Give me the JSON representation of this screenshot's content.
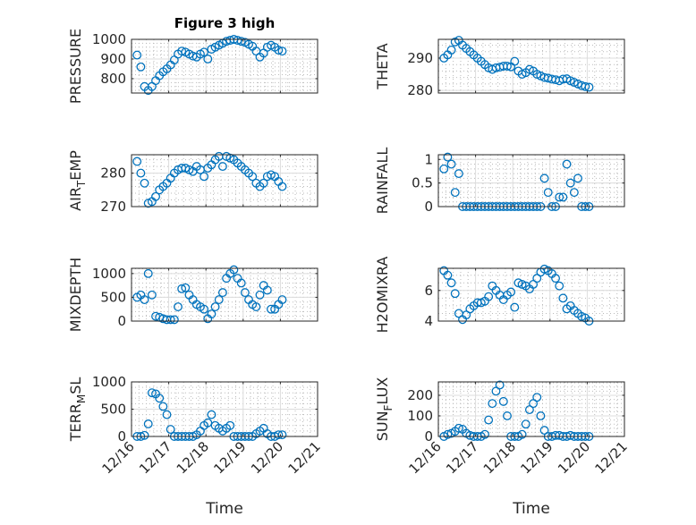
{
  "figure_title": "Figure 3 high",
  "xlabel": "Time",
  "chart_data": {
    "type": "scatter",
    "title": "Figure 3 high",
    "xlabel": "Time",
    "x_units": "days since 12/16",
    "xlim": [
      0,
      5
    ],
    "xtick_labels": [
      "12/16",
      "12/17",
      "12/18",
      "12/19",
      "12/20",
      "12/21"
    ],
    "grid": "on (major solid, minor dotted)",
    "marker": "circle",
    "color": "#0072BD",
    "t": [
      0.15,
      0.25,
      0.35,
      0.45,
      0.55,
      0.65,
      0.75,
      0.85,
      0.95,
      1.05,
      1.15,
      1.25,
      1.35,
      1.45,
      1.55,
      1.65,
      1.75,
      1.85,
      1.95,
      2.05,
      2.15,
      2.25,
      2.35,
      2.45,
      2.55,
      2.65,
      2.75,
      2.85,
      2.95,
      3.05,
      3.15,
      3.25,
      3.35,
      3.45,
      3.55,
      3.65,
      3.75,
      3.85,
      3.95,
      4.05
    ],
    "subplots": [
      {
        "ylabel": "PRESSURE",
        "ylim": [
          727,
          1000
        ],
        "yticks": [
          800,
          900,
          1000
        ],
        "values": [
          920,
          860,
          760,
          740,
          760,
          790,
          815,
          835,
          850,
          870,
          895,
          925,
          940,
          935,
          925,
          915,
          910,
          925,
          935,
          900,
          950,
          960,
          970,
          980,
          990,
          995,
          1000,
          995,
          990,
          985,
          975,
          965,
          940,
          910,
          930,
          960,
          970,
          960,
          945,
          940
        ]
      },
      {
        "ylabel": "THETA",
        "ylim": [
          279.2,
          295.8
        ],
        "yticks": [
          280,
          290
        ],
        "values": [
          290,
          291,
          292.5,
          295,
          295.5,
          294,
          293,
          292,
          291,
          290,
          289,
          288,
          287,
          286.5,
          287,
          287.2,
          287.5,
          287.5,
          287.3,
          289,
          286,
          285,
          285.5,
          286.5,
          286,
          285,
          284.5,
          284,
          283.8,
          283.5,
          283.3,
          283,
          283.5,
          283.6,
          283,
          282.5,
          282,
          281.5,
          281.2,
          281
        ]
      },
      {
        "ylabel": "AIR_TEMP",
        "ylim": [
          270,
          285.5
        ],
        "yticks": [
          270,
          280
        ],
        "values": [
          283.5,
          280,
          277,
          271,
          271.5,
          273,
          275,
          276,
          277,
          278.5,
          280,
          281,
          281.5,
          281.5,
          281,
          280.5,
          282,
          281,
          279,
          281.5,
          282.5,
          284,
          285,
          282,
          285,
          284.5,
          284,
          283,
          282,
          281,
          280,
          279,
          277,
          276,
          277,
          279,
          279.5,
          279,
          277.5,
          276
        ]
      },
      {
        "ylabel": "RAINFALL",
        "ylim": [
          0,
          1.1
        ],
        "yticks": [
          0,
          0.5,
          1
        ],
        "values": [
          0.8,
          1.05,
          0.9,
          0.3,
          0.7,
          0,
          0,
          0,
          0,
          0,
          0,
          0,
          0,
          0,
          0,
          0,
          0,
          0,
          0,
          0,
          0,
          0,
          0,
          0,
          0,
          0,
          0,
          0.6,
          0.3,
          0,
          0,
          0.2,
          0.2,
          0.9,
          0.5,
          0.3,
          0.6,
          0,
          0,
          0
        ]
      },
      {
        "ylabel": "MIXDEPTH",
        "ylim": [
          0,
          1110
        ],
        "yticks": [
          0,
          500,
          1000
        ],
        "values": [
          500,
          550,
          450,
          1000,
          550,
          100,
          80,
          50,
          30,
          30,
          30,
          300,
          680,
          700,
          550,
          450,
          350,
          300,
          250,
          50,
          150,
          300,
          450,
          600,
          900,
          1000,
          1080,
          900,
          800,
          600,
          450,
          350,
          300,
          550,
          750,
          650,
          250,
          250,
          350,
          450
        ]
      },
      {
        "ylabel": "H2OMIXRA",
        "ylim": [
          4,
          7.45
        ],
        "yticks": [
          4,
          6
        ],
        "values": [
          7.3,
          7.0,
          6.5,
          5.8,
          4.5,
          4.1,
          4.4,
          4.8,
          5.0,
          5.2,
          5.2,
          5.3,
          5.6,
          6.3,
          6.0,
          5.7,
          5.4,
          5.7,
          5.9,
          4.9,
          6.5,
          6.4,
          6.3,
          6.1,
          6.4,
          6.8,
          7.2,
          7.4,
          7.3,
          7.1,
          6.8,
          6.3,
          5.5,
          4.8,
          5.0,
          4.7,
          4.5,
          4.3,
          4.2,
          4.0
        ]
      },
      {
        "ylabel": "TERR_MSL",
        "ylim": [
          0,
          1000
        ],
        "yticks": [
          0,
          500,
          1000
        ],
        "values": [
          0,
          0,
          20,
          230,
          800,
          780,
          700,
          550,
          400,
          130,
          0,
          0,
          0,
          0,
          0,
          0,
          30,
          100,
          200,
          250,
          400,
          200,
          150,
          100,
          150,
          200,
          0,
          0,
          0,
          0,
          0,
          0,
          50,
          100,
          150,
          50,
          0,
          0,
          30,
          30
        ]
      },
      {
        "ylabel": "SUN_FLUX",
        "ylim": [
          0,
          265
        ],
        "yticks": [
          0,
          100,
          200
        ],
        "values": [
          0,
          10,
          15,
          25,
          40,
          35,
          15,
          5,
          0,
          0,
          0,
          10,
          80,
          160,
          220,
          250,
          170,
          100,
          0,
          0,
          0,
          10,
          60,
          130,
          160,
          190,
          100,
          30,
          0,
          0,
          5,
          5,
          0,
          0,
          5,
          0,
          0,
          0,
          0,
          0
        ]
      }
    ]
  }
}
